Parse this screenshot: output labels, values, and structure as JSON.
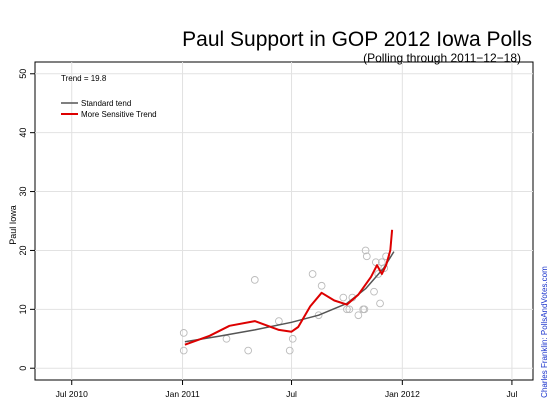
{
  "chart_data": {
    "type": "scatter",
    "title": "Paul Support in GOP 2012 Iowa Polls",
    "subtitle": "(Polling through 2011−12−18)",
    "xlabel": "",
    "ylabel": "Paul Iowa",
    "credit": "Charles Franklin: PollsAndVotes.com",
    "annotation": "Trend = 19.8",
    "xlim": [
      "2010-05-01",
      "2012-08-05"
    ],
    "ylim": [
      -2,
      52
    ],
    "x_ticks": [
      {
        "date": "2010-07-01",
        "label": "Jul 2010"
      },
      {
        "date": "2011-01-01",
        "label": "Jan 2011"
      },
      {
        "date": "2011-07-01",
        "label": "Jul"
      },
      {
        "date": "2012-01-01",
        "label": "Jan 2012"
      },
      {
        "date": "2012-07-01",
        "label": "Jul"
      }
    ],
    "y_ticks": [
      0,
      10,
      20,
      30,
      40,
      50
    ],
    "grid": true,
    "legend": {
      "position": "top-left",
      "entries": [
        {
          "label": "Standard tend",
          "color": "#555555"
        },
        {
          "label": "More Sensitive Trend",
          "color": "#dd0000"
        }
      ]
    },
    "series": [
      {
        "name": "Paul Iowa",
        "marker": "open-circle",
        "color": "#bbbbbb",
        "points": [
          {
            "x": "2011-01-03",
            "y": 6
          },
          {
            "x": "2011-01-03",
            "y": 3
          },
          {
            "x": "2011-03-15",
            "y": 5
          },
          {
            "x": "2011-04-20",
            "y": 3
          },
          {
            "x": "2011-05-01",
            "y": 15
          },
          {
            "x": "2011-06-10",
            "y": 8
          },
          {
            "x": "2011-06-28",
            "y": 3
          },
          {
            "x": "2011-07-03",
            "y": 5
          },
          {
            "x": "2011-08-05",
            "y": 16
          },
          {
            "x": "2011-08-15",
            "y": 9
          },
          {
            "x": "2011-08-20",
            "y": 14
          },
          {
            "x": "2011-09-25",
            "y": 12
          },
          {
            "x": "2011-10-01",
            "y": 10
          },
          {
            "x": "2011-10-05",
            "y": 10
          },
          {
            "x": "2011-10-10",
            "y": 12
          },
          {
            "x": "2011-10-20",
            "y": 9
          },
          {
            "x": "2011-10-28",
            "y": 10
          },
          {
            "x": "2011-10-30",
            "y": 10
          },
          {
            "x": "2011-11-01",
            "y": 20
          },
          {
            "x": "2011-11-03",
            "y": 19
          },
          {
            "x": "2011-11-15",
            "y": 13
          },
          {
            "x": "2011-11-18",
            "y": 18
          },
          {
            "x": "2011-11-22",
            "y": 16
          },
          {
            "x": "2011-11-25",
            "y": 11
          },
          {
            "x": "2011-11-28",
            "y": 18
          },
          {
            "x": "2011-12-02",
            "y": 17
          },
          {
            "x": "2011-12-05",
            "y": 19
          }
        ]
      },
      {
        "name": "Standard tend",
        "color": "#555555",
        "points": [
          {
            "x": "2011-01-05",
            "y": 4.5
          },
          {
            "x": "2011-03-01",
            "y": 5.4
          },
          {
            "x": "2011-05-01",
            "y": 6.5
          },
          {
            "x": "2011-07-01",
            "y": 7.8
          },
          {
            "x": "2011-08-15",
            "y": 9.0
          },
          {
            "x": "2011-10-01",
            "y": 11.0
          },
          {
            "x": "2011-11-01",
            "y": 13.5
          },
          {
            "x": "2011-12-01",
            "y": 17.0
          },
          {
            "x": "2011-12-18",
            "y": 19.8
          }
        ]
      },
      {
        "name": "More Sensitive Trend",
        "color": "#dd0000",
        "points": [
          {
            "x": "2011-01-05",
            "y": 4.0
          },
          {
            "x": "2011-02-15",
            "y": 5.5
          },
          {
            "x": "2011-03-20",
            "y": 7.2
          },
          {
            "x": "2011-05-01",
            "y": 8.0
          },
          {
            "x": "2011-06-10",
            "y": 6.5
          },
          {
            "x": "2011-07-01",
            "y": 6.2
          },
          {
            "x": "2011-07-12",
            "y": 7.0
          },
          {
            "x": "2011-08-01",
            "y": 10.5
          },
          {
            "x": "2011-08-20",
            "y": 12.8
          },
          {
            "x": "2011-09-10",
            "y": 11.5
          },
          {
            "x": "2011-10-01",
            "y": 10.8
          },
          {
            "x": "2011-10-20",
            "y": 12.5
          },
          {
            "x": "2011-11-10",
            "y": 15.5
          },
          {
            "x": "2011-11-20",
            "y": 17.5
          },
          {
            "x": "2011-11-28",
            "y": 16.0
          },
          {
            "x": "2011-12-05",
            "y": 17.5
          },
          {
            "x": "2011-12-12",
            "y": 20.0
          },
          {
            "x": "2011-12-15",
            "y": 23.5
          }
        ]
      }
    ]
  }
}
